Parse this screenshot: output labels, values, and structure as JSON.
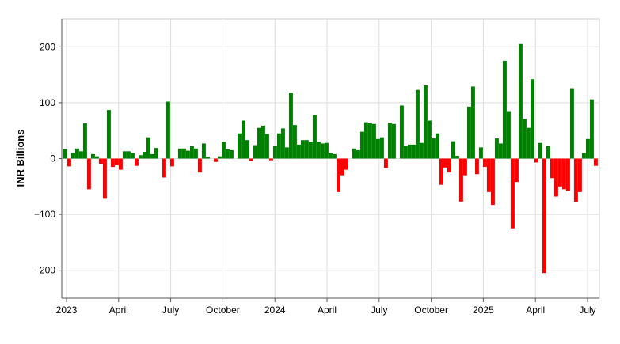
{
  "chart_data": {
    "type": "bar",
    "title": "",
    "xlabel": "",
    "ylabel": "INR Billions",
    "ylim": [
      -250,
      250
    ],
    "yticks": [
      -200,
      -100,
      0,
      100,
      200
    ],
    "ytick_labels": [
      "−200",
      "−100",
      "0",
      "100",
      "200"
    ],
    "xtick_labels": [
      "2023",
      "April",
      "July",
      "October",
      "2024",
      "April",
      "July",
      "October",
      "2025",
      "April",
      "July"
    ],
    "grid": true,
    "legend": "none",
    "colors": {
      "positive": "#008000",
      "negative": "#ff0000"
    },
    "values": [
      17,
      -14,
      10,
      18,
      13,
      63,
      -55,
      8,
      4,
      -10,
      -72,
      87,
      -15,
      -12,
      -20,
      13,
      13,
      10,
      -13,
      6,
      12,
      38,
      8,
      19,
      0,
      -34,
      102,
      -14,
      0,
      18,
      18,
      14,
      22,
      18,
      -25,
      27,
      3,
      0,
      -6,
      4,
      30,
      17,
      15,
      0,
      45,
      68,
      33,
      -4,
      24,
      55,
      59,
      44,
      -3,
      23,
      45,
      54,
      20,
      118,
      60,
      25,
      33,
      33,
      30,
      78,
      30,
      27,
      28,
      10,
      8,
      -60,
      -30,
      -20,
      0,
      18,
      15,
      48,
      65,
      63,
      62,
      35,
      38,
      -17,
      64,
      62,
      0,
      95,
      23,
      25,
      25,
      123,
      28,
      131,
      68,
      36,
      45,
      -47,
      -16,
      -25,
      31,
      5,
      -77,
      -30,
      93,
      129,
      -28,
      20,
      -15,
      -60,
      -83,
      36,
      27,
      175,
      85,
      -125,
      -42,
      205,
      71,
      55,
      142,
      -7,
      28,
      -205,
      22,
      -35,
      -68,
      -50,
      -55,
      -58,
      126,
      -78,
      -60,
      10,
      35,
      106,
      -13
    ]
  }
}
